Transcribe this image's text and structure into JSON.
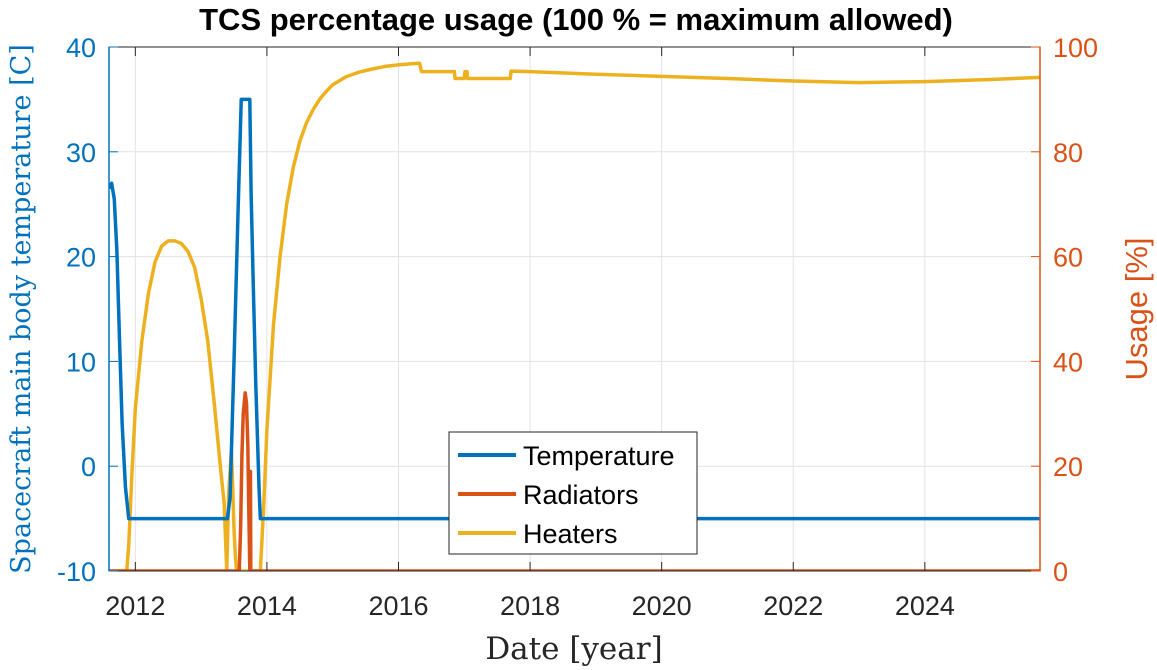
{
  "chart_data": {
    "type": "line",
    "title": "TCS percentage usage (100 % = maximum allowed)",
    "xlabel": "Date [year]",
    "ylabel_left": "Spacecraft main body temperature [C]",
    "ylabel_right": "Usage [%]",
    "xlim": [
      2011.6,
      2025.75
    ],
    "ylim_left": [
      -10,
      40
    ],
    "ylim_right": [
      0,
      100
    ],
    "x_ticks": [
      2012,
      2014,
      2016,
      2018,
      2020,
      2022,
      2024
    ],
    "y_left_ticks": [
      -10,
      0,
      10,
      20,
      30,
      40
    ],
    "y_right_ticks": [
      0,
      20,
      40,
      60,
      80,
      100
    ],
    "grid": true,
    "legend_position": "bottom-center",
    "colors": {
      "left_axis": "#0072BD",
      "right_axis": "#D95319",
      "temperature": "#0072BD",
      "radiators": "#D95319",
      "heaters": "#EDB120"
    },
    "series": [
      {
        "name": "Temperature",
        "axis": "left",
        "x": [
          2011.6,
          2011.64,
          2011.68,
          2011.72,
          2011.76,
          2011.8,
          2011.85,
          2011.9,
          2011.94,
          2013.38,
          2013.4,
          2013.44,
          2013.5,
          2013.56,
          2013.61,
          2013.64,
          2013.73,
          2013.74,
          2013.76,
          2013.79,
          2013.83,
          2013.88,
          2013.9,
          2025.75
        ],
        "y": [
          26.5,
          27,
          25.5,
          20.5,
          12,
          4,
          -2,
          -5,
          -5,
          -5,
          -5,
          -3,
          10,
          24,
          35,
          35,
          35,
          35,
          26,
          18,
          8,
          -2,
          -5,
          -5
        ]
      },
      {
        "name": "Radiators",
        "axis": "right",
        "x": [
          2011.6,
          2013.58,
          2013.6,
          2013.62,
          2013.64,
          2013.67,
          2013.69,
          2013.71,
          2013.72,
          2013.73,
          2013.74,
          2013.745,
          2013.75,
          2013.755,
          2013.76,
          2025.75
        ],
        "y": [
          0,
          0,
          8,
          22,
          30,
          34,
          32,
          24,
          15,
          8,
          0,
          19,
          19,
          0,
          0,
          0
        ]
      },
      {
        "name": "Heaters",
        "axis": "right",
        "x": [
          2011.6,
          2011.87,
          2011.9,
          2011.95,
          2012.0,
          2012.1,
          2012.2,
          2012.3,
          2012.4,
          2012.5,
          2012.6,
          2012.7,
          2012.8,
          2012.9,
          2013.0,
          2013.1,
          2013.2,
          2013.3,
          2013.35,
          2013.39,
          2013.42,
          2013.44,
          2013.46,
          2013.48,
          2013.5,
          2013.52,
          2013.54,
          2013.9,
          2013.95,
          2014.0,
          2014.1,
          2014.2,
          2014.3,
          2014.4,
          2014.5,
          2014.6,
          2014.7,
          2014.8,
          2014.9,
          2015.0,
          2015.2,
          2015.4,
          2015.6,
          2015.8,
          2016.0,
          2016.2,
          2016.32,
          2016.35,
          2016.6,
          2016.85,
          2016.86,
          2017.0,
          2017.01,
          2017.04,
          2017.05,
          2017.1,
          2017.11,
          2017.7,
          2017.71,
          2018.0,
          2019.0,
          2020.0,
          2021.0,
          2022.0,
          2023.0,
          2024.0,
          2025.0,
          2025.75
        ],
        "y": [
          0,
          0,
          5,
          19,
          31,
          44,
          53,
          59,
          62,
          63,
          63,
          62.5,
          61,
          58,
          52,
          44,
          32,
          19,
          13,
          0,
          15,
          19,
          23,
          16,
          8,
          3,
          0,
          0,
          12,
          27,
          47,
          60,
          70,
          77,
          82,
          85.5,
          88,
          90,
          91.5,
          92.8,
          94.3,
          95.2,
          95.8,
          96.3,
          96.6,
          96.8,
          96.9,
          95.3,
          95.3,
          95.3,
          94,
          94,
          95.3,
          95.3,
          94,
          94,
          94,
          94,
          95.4,
          95.3,
          94.8,
          94.4,
          94,
          93.5,
          93.2,
          93.4,
          93.8,
          94.2
        ]
      }
    ]
  }
}
